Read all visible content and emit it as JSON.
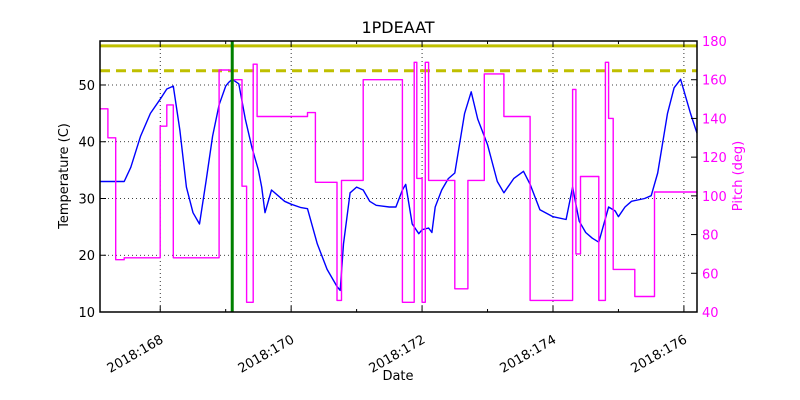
{
  "chart_data": {
    "type": "line",
    "title": "1PDEAAT",
    "xlabel": "Date",
    "ylabel": "Temperature (C)",
    "y2label": "Pitch (deg)",
    "xlim": [
      167.08,
      176.2
    ],
    "ylim": [
      10,
      57.75
    ],
    "y2lim": [
      40,
      180
    ],
    "x_ticks": [
      168,
      170,
      172,
      174,
      176
    ],
    "x_minor_ticks": [
      169,
      171,
      173,
      175
    ],
    "x_tick_labels": [
      "2018:168",
      "2018:170",
      "2018:172",
      "2018:174",
      "2018:176"
    ],
    "y_ticks": [
      10,
      20,
      30,
      40,
      50
    ],
    "y2_ticks": [
      40,
      60,
      80,
      100,
      120,
      140,
      160,
      180
    ],
    "grid": true,
    "colors": {
      "temperature": "#0000ff",
      "pitch": "#ff00ff",
      "planning_limit": "#bfbf00",
      "caution_limit": "#bfbf00",
      "now_marker": "#008000",
      "axis": "#000000"
    },
    "hlines": [
      {
        "name": "planning-limit",
        "y": 56.9,
        "style": "solid"
      },
      {
        "name": "caution-limit",
        "y": 52.5,
        "style": "dashed"
      }
    ],
    "vlines": [
      {
        "name": "current-time-marker",
        "x": 169.1
      }
    ],
    "series": [
      {
        "name": "Temperature",
        "axis": "left",
        "x": [
          167.08,
          167.4,
          167.45,
          167.55,
          167.7,
          167.85,
          168.0,
          168.1,
          168.2,
          168.3,
          168.4,
          168.5,
          168.6,
          168.7,
          168.8,
          168.9,
          169.0,
          169.05,
          169.1,
          169.2,
          169.3,
          169.4,
          169.5,
          169.55,
          169.6,
          169.7,
          169.8,
          169.9,
          170.0,
          170.15,
          170.25,
          170.4,
          170.55,
          170.7,
          170.75,
          170.8,
          170.9,
          171.0,
          171.1,
          171.2,
          171.3,
          171.5,
          171.6,
          171.7,
          171.75,
          171.85,
          171.95,
          172.0,
          172.1,
          172.15,
          172.2,
          172.3,
          172.4,
          172.5,
          172.65,
          172.75,
          172.85,
          173.0,
          173.15,
          173.25,
          173.4,
          173.55,
          173.65,
          173.8,
          174.0,
          174.2,
          174.3,
          174.35,
          174.4,
          174.5,
          174.6,
          174.7,
          174.85,
          174.95,
          175.0,
          175.1,
          175.2,
          175.4,
          175.5,
          175.6,
          175.75,
          175.85,
          175.95,
          176.1,
          176.2
        ],
        "values": [
          33.0,
          33.0,
          33.0,
          35.5,
          41.0,
          45.0,
          47.5,
          49.3,
          49.8,
          42.0,
          32.0,
          27.5,
          25.5,
          33.0,
          41.0,
          46.5,
          49.8,
          50.5,
          51.0,
          50.2,
          44.0,
          39.0,
          35.0,
          32.0,
          27.5,
          31.5,
          30.5,
          29.5,
          29.0,
          28.4,
          28.2,
          22.0,
          17.5,
          14.5,
          13.8,
          22.0,
          31.0,
          32.0,
          31.5,
          29.5,
          28.8,
          28.5,
          28.5,
          31.5,
          32.5,
          25.5,
          23.8,
          24.5,
          24.8,
          24.0,
          28.5,
          31.5,
          33.5,
          34.5,
          45.0,
          48.8,
          44.0,
          39.5,
          33.0,
          31.0,
          33.5,
          34.8,
          32.5,
          28.0,
          26.8,
          26.3,
          32.0,
          29.0,
          26.0,
          24.0,
          23.0,
          22.3,
          28.5,
          27.8,
          26.8,
          28.5,
          29.5,
          30.0,
          30.5,
          34.5,
          45.0,
          49.5,
          51.0,
          45.0,
          41.5
        ]
      },
      {
        "name": "Pitch",
        "axis": "right",
        "x": [
          167.08,
          167.2,
          167.2,
          167.32,
          167.32,
          167.45,
          167.45,
          168.0,
          168.0,
          168.1,
          168.1,
          168.2,
          168.2,
          168.3,
          168.3,
          168.9,
          168.9,
          169.05,
          169.05,
          169.1,
          169.1,
          169.25,
          169.25,
          169.32,
          169.32,
          169.42,
          169.42,
          169.48,
          169.48,
          169.53,
          169.53,
          169.6,
          169.6,
          169.6,
          169.6,
          170.25,
          170.25,
          170.37,
          170.37,
          170.7,
          170.7,
          170.77,
          170.77,
          171.1,
          171.1,
          171.7,
          171.7,
          171.88,
          171.88,
          171.92,
          171.92,
          172.0,
          172.0,
          172.05,
          172.05,
          172.1,
          172.1,
          172.18,
          172.18,
          172.5,
          172.5,
          172.7,
          172.7,
          172.95,
          172.95,
          173.25,
          173.25,
          173.55,
          173.55,
          173.65,
          173.65,
          174.3,
          174.3,
          174.35,
          174.35,
          174.42,
          174.42,
          174.7,
          174.7,
          174.8,
          174.8,
          174.85,
          174.85,
          174.92,
          174.92,
          175.25,
          175.25,
          175.55,
          175.55,
          175.75,
          175.75,
          175.88,
          175.88,
          176.2
        ],
        "values": [
          145,
          145,
          130,
          130,
          67,
          67,
          68,
          68,
          136,
          136,
          147,
          147,
          68,
          68,
          68,
          68,
          165,
          165,
          165,
          164,
          160,
          160,
          105,
          105,
          45,
          45,
          168,
          168,
          141,
          141,
          141,
          141,
          141,
          141,
          141,
          141,
          143,
          143,
          107,
          107,
          46,
          46,
          108,
          108,
          160,
          160,
          45,
          45,
          169,
          169,
          109,
          109,
          45,
          45,
          169,
          169,
          108,
          108,
          108,
          108,
          52,
          52,
          108,
          108,
          163,
          163,
          141,
          141,
          141,
          141,
          46,
          46,
          155,
          155,
          70,
          70,
          110,
          110,
          46,
          46,
          169,
          169,
          140,
          140,
          62,
          62,
          48,
          48,
          102,
          102,
          102,
          102,
          102,
          102
        ]
      }
    ]
  }
}
